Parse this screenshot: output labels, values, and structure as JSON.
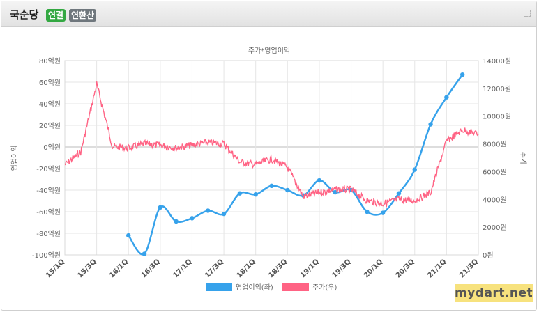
{
  "header": {
    "company": "국순당",
    "badge_consolidated": "연결",
    "badge_annualized": "연환산",
    "expand_icon": "expand-icon"
  },
  "watermark": "mydart.net",
  "chart_data": {
    "type": "line",
    "title": "주가*영업이익",
    "ylabel_left": "영업이익",
    "ylabel_right": "주가",
    "left_axis": {
      "min": -100,
      "max": 80,
      "step": 20,
      "unit": "억원"
    },
    "right_axis": {
      "min": 0,
      "max": 14000,
      "step": 2000,
      "unit": "원"
    },
    "x_ticks": [
      "15/1Q",
      "15/3Q",
      "16/1Q",
      "16/3Q",
      "17/1Q",
      "17/3Q",
      "18/1Q",
      "18/3Q",
      "19/1Q",
      "19/3Q",
      "20/1Q",
      "20/3Q",
      "21/1Q",
      "21/3Q"
    ],
    "grid": true,
    "legend_position": "bottom",
    "series": [
      {
        "name": "영업이익(좌)",
        "axis": "left",
        "color": "#36a2eb",
        "points": [
          [
            "16/1Q",
            -82
          ],
          [
            "16/2Q",
            -99
          ],
          [
            "16/3Q",
            -56
          ],
          [
            "16/4Q",
            -69
          ],
          [
            "17/1Q",
            -66
          ],
          [
            "17/2Q",
            -59
          ],
          [
            "17/3Q",
            -62
          ],
          [
            "17/4Q",
            -43
          ],
          [
            "18/1Q",
            -44
          ],
          [
            "18/2Q",
            -36
          ],
          [
            "18/3Q",
            -40
          ],
          [
            "18/4Q",
            -45
          ],
          [
            "19/1Q",
            -31
          ],
          [
            "19/2Q",
            -42
          ],
          [
            "19/3Q",
            -40
          ],
          [
            "19/4Q",
            -60
          ],
          [
            "20/1Q",
            -61
          ],
          [
            "20/2Q",
            -43
          ],
          [
            "20/3Q",
            -21
          ],
          [
            "20/4Q",
            21
          ],
          [
            "21/1Q",
            46
          ],
          [
            "21/2Q",
            67
          ]
        ]
      },
      {
        "name": "주가(우)",
        "axis": "right",
        "color": "#ff6384",
        "points": [
          [
            "15/1Q",
            6500
          ],
          [
            "15/2Q",
            7400
          ],
          [
            "15/3Q",
            12300
          ],
          [
            "15/4Q",
            7800
          ],
          [
            "16/1Q",
            7700
          ],
          [
            "16/2Q",
            8000
          ],
          [
            "16/3Q",
            7900
          ],
          [
            "16/4Q",
            7700
          ],
          [
            "17/1Q",
            7900
          ],
          [
            "17/2Q",
            8100
          ],
          [
            "17/3Q",
            8000
          ],
          [
            "17/4Q",
            6700
          ],
          [
            "18/1Q",
            6500
          ],
          [
            "18/2Q",
            6900
          ],
          [
            "18/3Q",
            6300
          ],
          [
            "18/4Q",
            4200
          ],
          [
            "19/1Q",
            4500
          ],
          [
            "19/2Q",
            4700
          ],
          [
            "19/3Q",
            4700
          ],
          [
            "19/4Q",
            3900
          ],
          [
            "20/1Q",
            3700
          ],
          [
            "20/2Q",
            4000
          ],
          [
            "20/3Q",
            3900
          ],
          [
            "20/4Q",
            4500
          ],
          [
            "21/1Q",
            8200
          ],
          [
            "21/2Q",
            9000
          ],
          [
            "21/3Q",
            8700
          ]
        ]
      }
    ]
  }
}
